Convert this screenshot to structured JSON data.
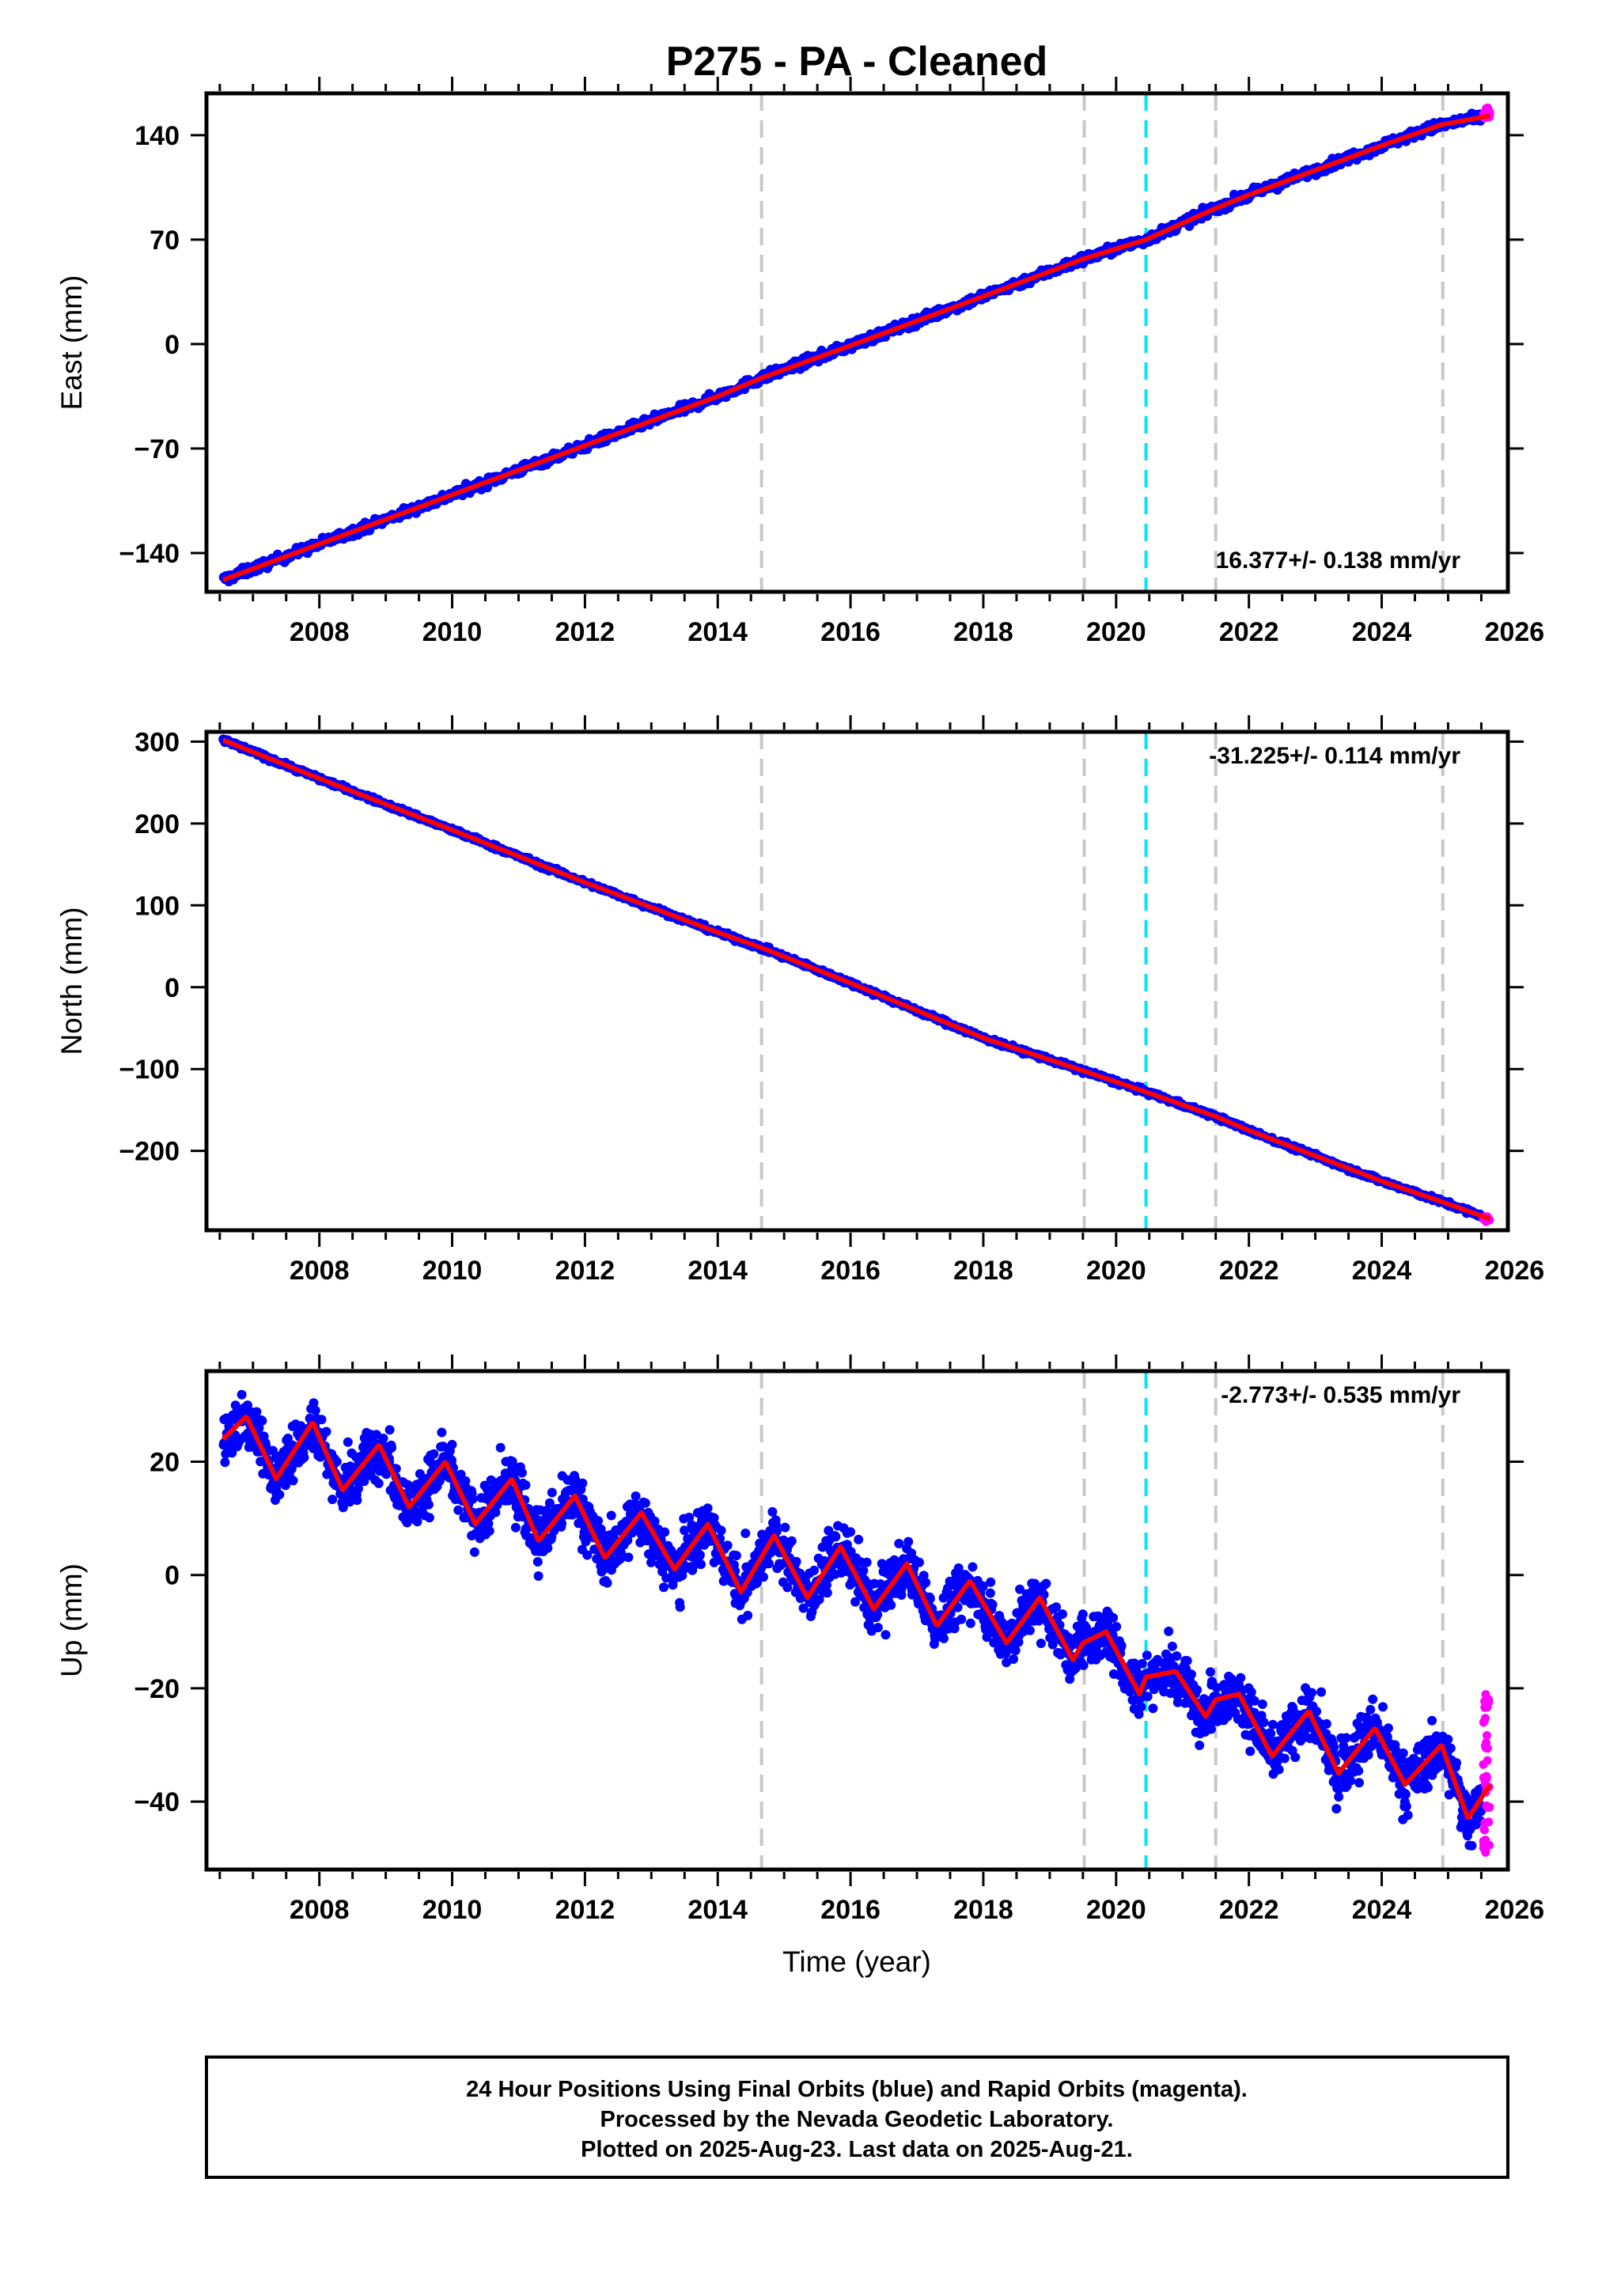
{
  "title": "P275  - PA - Cleaned",
  "colors": {
    "final": "#0000ff",
    "rapid": "#ff00ff",
    "model": "#ff0000",
    "event_line": "#c8c8c8",
    "equipment_line": "#00e5ff",
    "frame": "#000000"
  },
  "footnote": {
    "line1": "24 Hour Positions Using Final Orbits (blue) and Rapid Orbits (magenta).",
    "line2": "Processed by the Nevada Geodetic Laboratory.",
    "line3": "Plotted on 2025-Aug-23. Last data on 2025-Aug-21."
  },
  "xlabel": "Time (year)",
  "chart_data": [
    {
      "type": "scatter",
      "component": "east",
      "ylabel": "East (mm)",
      "rate_label": "16.377+/- 0.138 mm/yr",
      "rate_position": "bottom-right",
      "xlim": [
        2006.3,
        2025.9
      ],
      "ylim": [
        -166,
        168
      ],
      "yticks": [
        -140,
        -70,
        0,
        70,
        140
      ],
      "xticks": [
        2008,
        2010,
        2012,
        2014,
        2016,
        2018,
        2020,
        2022,
        2024,
        2026
      ],
      "data_start": 2006.55,
      "data_end": 2025.63,
      "model": {
        "x": [
          2006.55,
          2008.0,
          2010.0,
          2012.0,
          2014.0,
          2014.7,
          2016.0,
          2018.0,
          2019.5,
          2020.45,
          2021.5,
          2022.0,
          2024.0,
          2024.9,
          2025.63
        ],
        "y": [
          -158,
          -134,
          -101,
          -68,
          -35,
          -22,
          -1,
          32,
          57,
          70,
          91,
          100,
          133,
          147,
          153
        ]
      },
      "rapid_range": [
        150,
        160
      ]
    },
    {
      "type": "scatter",
      "component": "north",
      "ylabel": "North (mm)",
      "rate_label": "-31.225+/- 0.114 mm/yr",
      "rate_position": "top-right",
      "xlim": [
        2006.3,
        2025.9
      ],
      "ylim": [
        -297,
        312
      ],
      "yticks": [
        -200,
        -100,
        0,
        100,
        200,
        300
      ],
      "xticks": [
        2008,
        2010,
        2012,
        2014,
        2016,
        2018,
        2020,
        2022,
        2024,
        2026
      ],
      "data_start": 2006.55,
      "data_end": 2025.63,
      "model": {
        "x": [
          2006.55,
          2008.0,
          2010.0,
          2012.0,
          2014.0,
          2014.7,
          2016.0,
          2018.0,
          2019.5,
          2020.45,
          2021.5,
          2022.0,
          2024.0,
          2024.9,
          2025.63
        ],
        "y": [
          302,
          255,
          192,
          128,
          67,
          47,
          5,
          -62,
          -102,
          -128,
          -158,
          -175,
          -237,
          -262,
          -283
        ]
      },
      "rapid_range": [
        -287,
        -280
      ]
    },
    {
      "type": "scatter",
      "component": "up",
      "ylabel": "Up (mm)",
      "rate_label": "-2.773+/- 0.535 mm/yr",
      "rate_position": "top-right",
      "xlim": [
        2006.3,
        2025.9
      ],
      "ylim": [
        -52,
        36
      ],
      "yticks": [
        -40,
        -20,
        0,
        20
      ],
      "xticks": [
        2008,
        2010,
        2012,
        2014,
        2016,
        2018,
        2020,
        2022,
        2024,
        2026
      ],
      "data_start": 2006.55,
      "data_end": 2025.63,
      "model": {
        "x": [
          2006.55,
          2006.9,
          2007.35,
          2007.9,
          2008.35,
          2008.9,
          2009.35,
          2009.9,
          2010.35,
          2010.9,
          2011.3,
          2011.85,
          2012.3,
          2012.85,
          2013.35,
          2013.85,
          2014.35,
          2014.85,
          2015.35,
          2015.85,
          2016.35,
          2016.85,
          2017.3,
          2017.8,
          2018.35,
          2018.85,
          2019.35,
          2019.5,
          2019.85,
          2020.35,
          2020.45,
          2020.9,
          2021.35,
          2021.5,
          2021.85,
          2022.35,
          2022.9,
          2023.35,
          2023.9,
          2024.35,
          2024.9,
          2025.3,
          2025.63
        ],
        "y": [
          24,
          28,
          17,
          27,
          15,
          23,
          12,
          20,
          9,
          17,
          6,
          14,
          3,
          11,
          1,
          9,
          -3,
          7,
          -4,
          5,
          -6,
          2,
          -9,
          -1,
          -12,
          -4,
          -15,
          -12,
          -10,
          -21,
          -18,
          -17,
          -25,
          -22,
          -21,
          -32,
          -24,
          -35,
          -27,
          -37,
          -30,
          -43,
          -37
        ],
        "rapid_range": [
          -49,
          -20
        ]
      },
      "rapid_range": [
        -49,
        -20
      ]
    }
  ],
  "event_lines": {
    "gray": [
      2014.66,
      2019.52,
      2021.5,
      2024.92
    ],
    "cyan": [
      2020.45
    ]
  }
}
